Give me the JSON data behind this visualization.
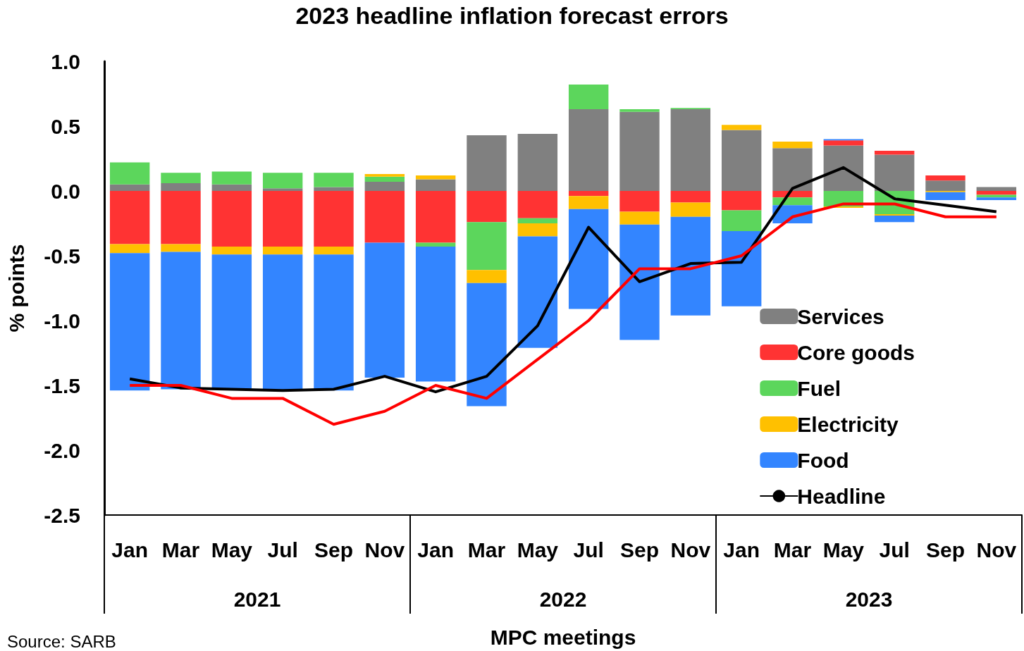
{
  "chart_data": {
    "type": "bar",
    "stacked": true,
    "title": "2023 headline inflation forecast errors",
    "xlabel": "MPC meetings",
    "ylabel": "% points",
    "categories": [
      "Jan",
      "Mar",
      "May",
      "Jul",
      "Sep",
      "Nov",
      "Jan",
      "Mar",
      "May",
      "Jul",
      "Sep",
      "Nov",
      "Jan",
      "Mar",
      "May",
      "Jul",
      "Sep",
      "Nov"
    ],
    "series": [
      {
        "name": "Services",
        "color": "#808080",
        "values": [
          0.05,
          0.06,
          0.05,
          0.02,
          0.03,
          0.07,
          0.09,
          0.43,
          0.44,
          0.63,
          0.61,
          0.63,
          0.47,
          0.33,
          0.35,
          0.28,
          0.08,
          0.03
        ]
      },
      {
        "name": "Core goods",
        "color": "#ff3333",
        "values": [
          -0.41,
          -0.41,
          -0.43,
          -0.43,
          -0.43,
          -0.4,
          -0.4,
          -0.24,
          -0.21,
          -0.04,
          -0.16,
          -0.09,
          -0.15,
          -0.05,
          0.04,
          0.03,
          0.04,
          -0.03
        ]
      },
      {
        "name": "Fuel",
        "color": "#5cd65c",
        "values": [
          0.17,
          0.08,
          0.1,
          0.12,
          0.11,
          0.04,
          -0.03,
          -0.37,
          -0.04,
          0.19,
          0.02,
          0.01,
          -0.16,
          -0.06,
          -0.12,
          -0.18,
          null,
          -0.02
        ]
      },
      {
        "name": "Electricity",
        "color": "#ffc000",
        "values": [
          -0.07,
          -0.06,
          -0.06,
          -0.06,
          -0.06,
          0.02,
          0.03,
          -0.1,
          -0.1,
          -0.1,
          -0.1,
          -0.11,
          0.04,
          0.05,
          -0.01,
          -0.01,
          -0.01,
          null
        ]
      },
      {
        "name": "Food",
        "color": "#3385ff",
        "values": [
          -1.06,
          -1.06,
          -1.04,
          -1.05,
          -1.05,
          -1.04,
          -1.04,
          -0.95,
          -0.86,
          -0.77,
          -0.89,
          -0.76,
          -0.58,
          -0.14,
          0.01,
          -0.05,
          -0.06,
          -0.02
        ]
      },
      {
        "name": "Headline",
        "type": "line",
        "color": "#000000",
        "values": [
          -1.45,
          -1.52,
          -1.53,
          -1.54,
          -1.53,
          -1.43,
          -1.55,
          -1.43,
          -1.04,
          -0.28,
          -0.7,
          -0.56,
          -0.55,
          0.02,
          0.18,
          -0.06,
          -0.11,
          -0.16
        ]
      },
      {
        "type": "line",
        "color": "#ff0000",
        "values": [
          -1.5,
          -1.5,
          -1.6,
          -1.6,
          -1.8,
          -1.7,
          -1.5,
          -1.6,
          -1.3,
          -1.0,
          -0.6,
          -0.6,
          -0.5,
          -0.2,
          -0.1,
          -0.1,
          -0.2,
          -0.2
        ]
      }
    ],
    "ylim": [
      -2.5,
      1.0
    ],
    "yticks": [
      {
        "value": -2.5,
        "label": "-2.5"
      },
      {
        "value": -2.0,
        "label": "-2.0"
      },
      {
        "value": -1.5,
        "label": "-1.5"
      },
      {
        "value": -1.0,
        "label": "-1.0"
      },
      {
        "value": -0.5,
        "label": "-0.5"
      },
      {
        "value": 0,
        "label": "0.0"
      },
      {
        "value": 0.5,
        "label": "0.5"
      },
      {
        "value": 1.0,
        "label": "1.0"
      }
    ],
    "grid": false,
    "legend": "bottom right",
    "marker": "none",
    "annotations": [
      "2021",
      "2022",
      "2023",
      "Source: SARB"
    ]
  }
}
